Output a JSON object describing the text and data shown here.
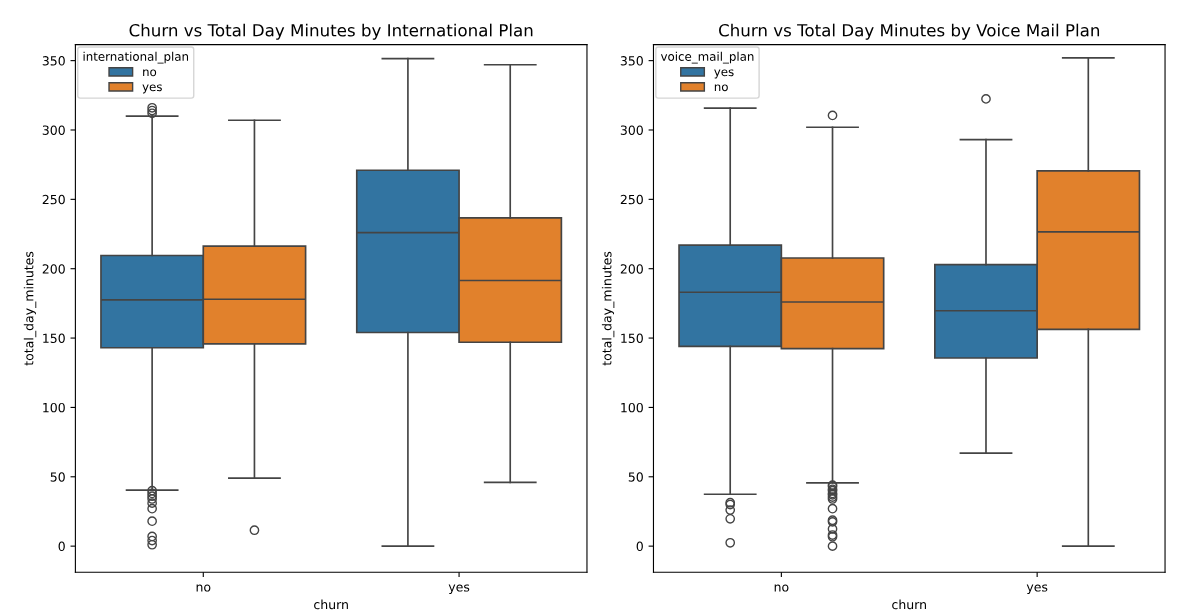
{
  "chart_data": [
    {
      "type": "box",
      "title": "Churn vs Total Day Minutes by International Plan",
      "xlabel": "churn",
      "ylabel": "total_day_minutes",
      "legend_title": "international_plan",
      "legend": "top left",
      "grid": false,
      "categories": [
        "no",
        "yes"
      ],
      "ylim": [
        -18.8,
        361.5
      ],
      "yticks": [
        0,
        50,
        100,
        150,
        200,
        250,
        300,
        350
      ],
      "series": [
        {
          "name": "no",
          "color": "#3274a1",
          "boxes": [
            {
              "low": 40.4,
              "q1": 143,
              "median": 177.5,
              "q3": 209.5,
              "high": 310,
              "outliers": [
                312,
                314,
                316,
                40,
                38,
                36,
                34,
                31,
                27,
                18,
                7,
                4,
                1
              ]
            },
            {
              "low": 0,
              "q1": 154,
              "median": 226,
              "q3": 271,
              "high": 351.5
            }
          ]
        },
        {
          "name": "yes",
          "color": "#e1812c",
          "boxes": [
            {
              "low": 49,
              "q1": 145.8,
              "median": 178,
              "q3": 216.3,
              "high": 307,
              "outliers": [
                11.5
              ]
            },
            {
              "low": 46,
              "q1": 147,
              "median": 191.5,
              "q3": 236.7,
              "high": 347
            }
          ]
        }
      ]
    },
    {
      "type": "box",
      "title": "Churn vs Total Day Minutes by Voice Mail Plan",
      "xlabel": "churn",
      "ylabel": "total_day_minutes",
      "legend_title": "voice_mail_plan",
      "legend": "top left",
      "grid": false,
      "categories": [
        "no",
        "yes"
      ],
      "ylim": [
        -18.8,
        361.5
      ],
      "yticks": [
        0,
        50,
        100,
        150,
        200,
        250,
        300,
        350
      ],
      "series": [
        {
          "name": "yes",
          "color": "#3274a1",
          "boxes": [
            {
              "low": 37.4,
              "q1": 144,
              "median": 183,
              "q3": 217,
              "high": 315.8,
              "outliers": [
                31.3,
                30,
                26,
                19.7,
                2.4
              ]
            },
            {
              "low": 67,
              "q1": 135.6,
              "median": 169.7,
              "q3": 203,
              "high": 293,
              "outliers": [
                322.4
              ]
            }
          ]
        },
        {
          "name": "no",
          "color": "#e1812c",
          "boxes": [
            {
              "low": 45.6,
              "q1": 142.4,
              "median": 176,
              "q3": 207.7,
              "high": 302,
              "outliers": [
                310.5,
                44,
                43,
                41,
                40,
                38,
                37,
                35.4,
                34,
                27,
                18.7,
                17.5,
                12.4,
                8,
                6.8,
                0
              ]
            },
            {
              "low": 0,
              "q1": 156.3,
              "median": 226.5,
              "q3": 270.5,
              "high": 352
            }
          ]
        }
      ]
    }
  ]
}
